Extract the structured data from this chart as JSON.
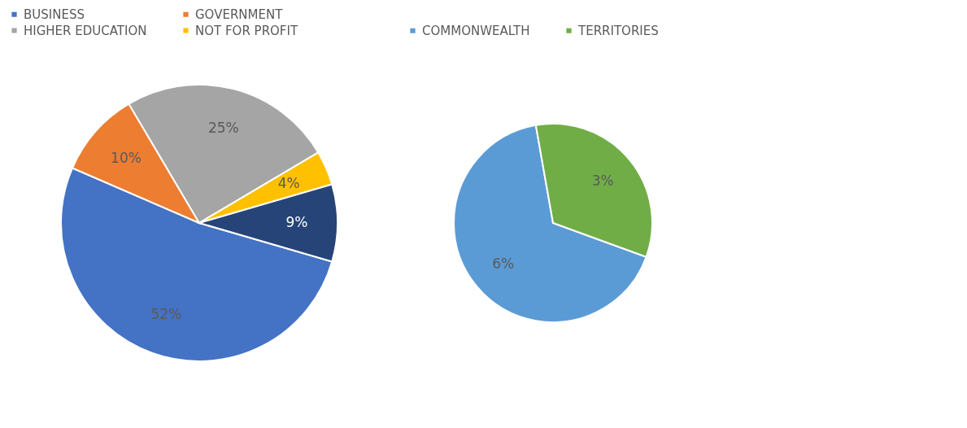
{
  "chart_data": [
    {
      "type": "pie",
      "categories": [
        "BUSINESS",
        "GOVERNMENT",
        "HIGHER EDUCATION",
        "NOT FOR PROFIT",
        null
      ],
      "values": [
        52,
        10,
        25,
        4,
        9
      ],
      "colors": [
        "#4472c4",
        "#ed7d31",
        "#a5a5a5",
        "#ffc000",
        "#264478"
      ],
      "value_labels": [
        "52%",
        "10%",
        "25%",
        "4%",
        "9%"
      ],
      "legend": "top"
    },
    {
      "type": "pie",
      "categories": [
        "COMMONWEALTH",
        "TERRITORIES"
      ],
      "values": [
        6,
        3
      ],
      "colors": [
        "#5b9bd5",
        "#70ad47"
      ],
      "value_labels": [
        "6%",
        "3%"
      ],
      "legend": "top"
    }
  ]
}
